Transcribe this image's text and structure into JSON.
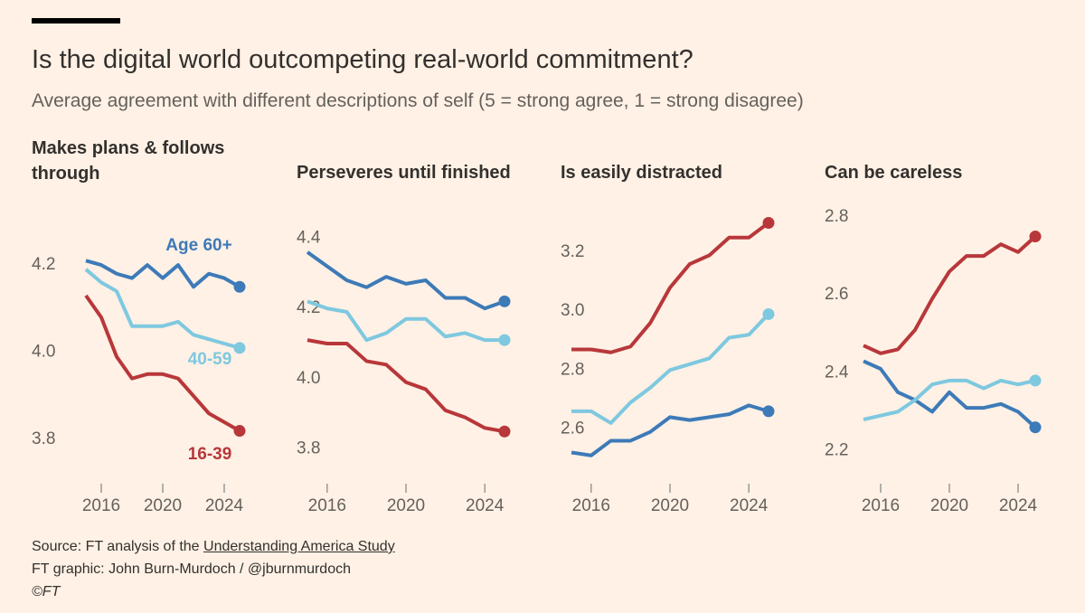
{
  "title": "Is the digital world outcompeting real-world commitment?",
  "subtitle": "Average agreement with different descriptions of self (5 = strong agree, 1 = strong disagree)",
  "chart_data": [
    {
      "type": "line",
      "title": "Makes plans & follows through",
      "x": [
        2015,
        2016,
        2017,
        2018,
        2019,
        2020,
        2021,
        2022,
        2023,
        2024,
        2025
      ],
      "xlim": [
        2015,
        2025
      ],
      "xticks": [
        2016,
        2020,
        2024
      ],
      "ylim": [
        3.73,
        4.31
      ],
      "yticks": [
        {
          "value": 3.8,
          "label": "3.8"
        },
        {
          "value": 4.0,
          "label": "4.0"
        },
        {
          "value": 4.2,
          "label": "4.2"
        }
      ],
      "series": [
        {
          "name": "Age 60+",
          "color": "#3d7ab8",
          "values": [
            4.21,
            4.2,
            4.18,
            4.17,
            4.2,
            4.17,
            4.2,
            4.15,
            4.18,
            4.17,
            4.15
          ]
        },
        {
          "name": "40-59",
          "color": "#7ec8e0",
          "values": [
            4.19,
            4.16,
            4.14,
            4.06,
            4.06,
            4.06,
            4.07,
            4.04,
            4.03,
            4.02,
            4.01
          ]
        },
        {
          "name": "16-39",
          "color": "#b8373a",
          "values": [
            4.13,
            4.08,
            3.99,
            3.94,
            3.95,
            3.95,
            3.94,
            3.9,
            3.86,
            3.84,
            3.82
          ]
        }
      ]
    },
    {
      "type": "line",
      "title": "Perseveres until finished",
      "x": [
        2015,
        2016,
        2017,
        2018,
        2019,
        2020,
        2021,
        2022,
        2023,
        2024,
        2025
      ],
      "xlim": [
        2015,
        2025
      ],
      "xticks": [
        2016,
        2020,
        2024
      ],
      "ylim": [
        3.74,
        4.46
      ],
      "yticks": [
        {
          "value": 3.8,
          "label": "3.8"
        },
        {
          "value": 4.0,
          "label": "4.0"
        },
        {
          "value": 4.2,
          "label": "4.2"
        },
        {
          "value": 4.4,
          "label": "4.4"
        }
      ],
      "series": [
        {
          "color": "#3d7ab8",
          "values": [
            4.36,
            4.32,
            4.28,
            4.26,
            4.29,
            4.27,
            4.28,
            4.23,
            4.23,
            4.2,
            4.22
          ]
        },
        {
          "color": "#7ec8e0",
          "values": [
            4.22,
            4.2,
            4.19,
            4.11,
            4.13,
            4.17,
            4.17,
            4.12,
            4.13,
            4.11,
            4.11
          ]
        },
        {
          "color": "#b8373a",
          "values": [
            4.11,
            4.1,
            4.1,
            4.05,
            4.04,
            3.99,
            3.97,
            3.91,
            3.89,
            3.86,
            3.85
          ]
        }
      ]
    },
    {
      "type": "line",
      "title": "Is easily distracted",
      "x": [
        2015,
        2016,
        2017,
        2018,
        2019,
        2020,
        2021,
        2022,
        2023,
        2024,
        2025
      ],
      "xlim": [
        2015,
        2025
      ],
      "xticks": [
        2016,
        2020,
        2024
      ],
      "ylim": [
        2.46,
        3.32
      ],
      "yticks": [
        2.6,
        2.8,
        {
          "value": 3.0,
          "label": "3.0"
        },
        3.2
      ],
      "series": [
        {
          "color": "#3d7ab8",
          "values": [
            2.52,
            2.51,
            2.56,
            2.56,
            2.59,
            2.64,
            2.63,
            2.64,
            2.65,
            2.68,
            2.66
          ]
        },
        {
          "color": "#7ec8e0",
          "values": [
            2.66,
            2.66,
            2.62,
            2.69,
            2.74,
            2.8,
            2.82,
            2.84,
            2.91,
            2.92,
            2.99
          ]
        },
        {
          "color": "#b8373a",
          "values": [
            2.87,
            2.87,
            2.86,
            2.88,
            2.96,
            3.08,
            3.16,
            3.19,
            3.25,
            3.25,
            3.3
          ]
        }
      ]
    },
    {
      "type": "line",
      "title": "Can be careless",
      "x": [
        2015,
        2016,
        2017,
        2018,
        2019,
        2020,
        2021,
        2022,
        2023,
        2024,
        2025
      ],
      "xlim": [
        2015,
        2025
      ],
      "xticks": [
        2016,
        2020,
        2024
      ],
      "ylim": [
        2.15,
        2.8
      ],
      "yticks": [
        2.2,
        2.4,
        2.6,
        2.8
      ],
      "series": [
        {
          "color": "#3d7ab8",
          "values": [
            2.43,
            2.41,
            2.35,
            2.33,
            2.3,
            2.35,
            2.31,
            2.31,
            2.32,
            2.3,
            2.26
          ]
        },
        {
          "color": "#7ec8e0",
          "values": [
            2.28,
            2.29,
            2.3,
            2.33,
            2.37,
            2.38,
            2.38,
            2.36,
            2.38,
            2.37,
            2.38
          ]
        },
        {
          "color": "#b8373a",
          "values": [
            2.47,
            2.45,
            2.46,
            2.51,
            2.59,
            2.66,
            2.7,
            2.7,
            2.73,
            2.71,
            2.75
          ]
        }
      ]
    }
  ],
  "source": {
    "text": "Source: FT analysis of the",
    "link": "Understanding America Study"
  },
  "credit": "FT graphic: John Burn-Murdoch / @jburnmurdoch",
  "copyright": "©FT"
}
